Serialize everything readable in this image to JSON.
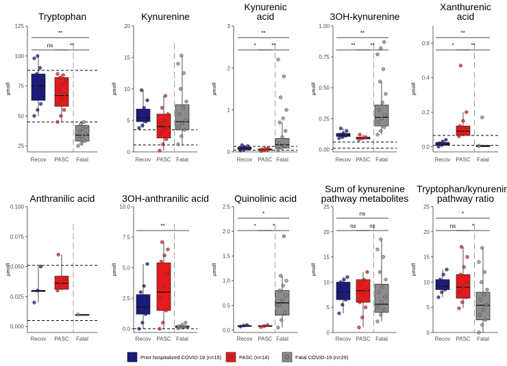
{
  "chart_data": {
    "type": "box",
    "ylabel": "µmol/l",
    "groups": [
      "Recov",
      "PASC",
      "Fatal"
    ],
    "legend": [
      {
        "label": "Prior hospitalized COVID-19 (n=15)",
        "color": "#1a1a7e"
      },
      {
        "label": "PASC (n=14)",
        "color": "#e41a1c"
      },
      {
        "label": "Fatal COVID-19 (n=29)",
        "color": "#8c8c8c"
      }
    ],
    "panels": [
      {
        "title": [
          "Tryptophan"
        ],
        "ylim": [
          20,
          125
        ],
        "ticks": [
          25,
          50,
          75,
          100,
          125
        ],
        "tick_labels": [
          "25",
          "50",
          "75",
          "100",
          "125"
        ],
        "ref_lines": [
          88,
          45
        ],
        "boxes": [
          {
            "q1": 63,
            "med": 75,
            "q3": 85,
            "lo": 50,
            "hi": 100,
            "pts": [
              50,
              55,
              60,
              65,
              70,
              72,
              75,
              78,
              82,
              85,
              90,
              98,
              100
            ]
          },
          {
            "q1": 58,
            "med": 67,
            "q3": 82,
            "lo": 45,
            "hi": 85,
            "pts": [
              45,
              50,
              55,
              60,
              64,
              68,
              72,
              76,
              80,
              82,
              84,
              85
            ]
          },
          {
            "q1": 29,
            "med": 34,
            "q3": 42,
            "lo": 25,
            "hi": 45,
            "pts": [
              25,
              27,
              29,
              31,
              33,
              35,
              37,
              39,
              41,
              43,
              45
            ]
          }
        ],
        "brackets": [
          {
            "from": 0,
            "to": 1,
            "level": 0,
            "label": "ns"
          },
          {
            "from": 1,
            "to": 2,
            "level": 0,
            "label": "**"
          },
          {
            "from": 0,
            "to": 2,
            "level": 1,
            "label": "**"
          }
        ]
      },
      {
        "title": [
          "Kynurenine"
        ],
        "ylim": [
          0,
          20
        ],
        "ticks": [
          0,
          5,
          10,
          15,
          20
        ],
        "tick_labels": [
          "0",
          "5",
          "10",
          "15",
          "20"
        ],
        "ref_lines": [
          3.5,
          1.1
        ],
        "boxes": [
          {
            "q1": 4.8,
            "med": 5.4,
            "q3": 6.8,
            "lo": 3.8,
            "hi": 9.8,
            "pts": [
              3.8,
              4.2,
              4.8,
              5.2,
              5.5,
              6.0,
              6.5,
              7.0,
              8.2,
              9.8
            ]
          },
          {
            "q1": 2.2,
            "med": 4.0,
            "q3": 6.0,
            "lo": 0.2,
            "hi": 8.9,
            "pts": [
              0.2,
              1.2,
              2.0,
              3.0,
              3.5,
              4.0,
              4.5,
              5.0,
              6.0,
              7.0,
              8.9
            ]
          },
          {
            "q1": 3.5,
            "med": 4.8,
            "q3": 7.5,
            "lo": 1.2,
            "hi": 15.3,
            "pts": [
              1.2,
              2.5,
              3.5,
              4.0,
              4.5,
              5.0,
              6.0,
              7.0,
              8.0,
              10.0,
              12.5,
              14.0,
              15.3
            ]
          }
        ],
        "brackets": []
      },
      {
        "title": [
          "Kynurenic",
          "acid"
        ],
        "ylim": [
          0,
          3
        ],
        "ticks": [
          0,
          1,
          2,
          3
        ],
        "tick_labels": [
          "0",
          "1",
          "2",
          "3"
        ],
        "ref_lines": [
          0.13,
          0.04
        ],
        "boxes": [
          {
            "q1": 0.06,
            "med": 0.08,
            "q3": 0.11,
            "lo": 0.03,
            "hi": 0.16,
            "pts": [
              0.03,
              0.05,
              0.07,
              0.09,
              0.11,
              0.14,
              0.16
            ]
          },
          {
            "q1": 0.04,
            "med": 0.05,
            "q3": 0.07,
            "lo": 0.02,
            "hi": 0.09,
            "pts": [
              0.02,
              0.04,
              0.05,
              0.06,
              0.08,
              0.09
            ]
          },
          {
            "q1": 0.09,
            "med": 0.17,
            "q3": 0.32,
            "lo": 0.03,
            "hi": 0.7,
            "pts": [
              0.05,
              0.1,
              0.15,
              0.2,
              0.35,
              0.5,
              0.7,
              0.8,
              1.0,
              1.3,
              1.8,
              2.2
            ]
          }
        ],
        "brackets": [
          {
            "from": 0,
            "to": 1,
            "level": 0,
            "label": "*"
          },
          {
            "from": 1,
            "to": 2,
            "level": 0,
            "label": "**"
          },
          {
            "from": 0,
            "to": 2,
            "level": 1,
            "label": "**"
          }
        ]
      },
      {
        "title": [
          "3OH-kynurenine"
        ],
        "ylim": [
          -0.02,
          1.0
        ],
        "ticks": [
          0,
          0.25,
          0.5,
          0.75,
          1.0
        ],
        "tick_labels": [
          "0.00",
          "0.25",
          "0.50",
          "0.75",
          "1.00"
        ],
        "ref_lines": [
          0.06,
          0.01
        ],
        "boxes": [
          {
            "q1": 0.105,
            "med": 0.115,
            "q3": 0.13,
            "lo": 0.09,
            "hi": 0.17,
            "pts": [
              0.09,
              0.1,
              0.11,
              0.12,
              0.13,
              0.15,
              0.17
            ]
          },
          {
            "q1": 0.085,
            "med": 0.09,
            "q3": 0.1,
            "lo": 0.08,
            "hi": 0.12,
            "pts": [
              0.08,
              0.09,
              0.1,
              0.12
            ]
          },
          {
            "q1": 0.19,
            "med": 0.26,
            "q3": 0.36,
            "lo": 0.12,
            "hi": 0.55,
            "pts": [
              0.12,
              0.15,
              0.18,
              0.22,
              0.25,
              0.28,
              0.32,
              0.38,
              0.45,
              0.55,
              0.65,
              0.77,
              0.82,
              0.87
            ]
          }
        ],
        "brackets": [
          {
            "from": 0,
            "to": 1,
            "level": 0,
            "label": "**"
          },
          {
            "from": 1,
            "to": 2,
            "level": 0,
            "label": "**"
          },
          {
            "from": 0,
            "to": 2,
            "level": 1,
            "label": "**"
          }
        ]
      },
      {
        "title": [
          "Xanthurenic",
          "acid"
        ],
        "ylim": [
          -0.03,
          0.7
        ],
        "ticks": [
          0,
          0.2,
          0.4,
          0.6
        ],
        "tick_labels": [
          "0.0",
          "0.2",
          "0.4",
          "0.6"
        ],
        "ref_lines": [
          0.065,
          0.008
        ],
        "boxes": [
          {
            "q1": 0.008,
            "med": 0.015,
            "q3": 0.025,
            "lo": 0.0,
            "hi": 0.04,
            "pts": [
              0.0,
              0.01,
              0.015,
              0.02,
              0.03,
              0.04
            ]
          },
          {
            "q1": 0.065,
            "med": 0.09,
            "q3": 0.12,
            "lo": 0.06,
            "hi": 0.2,
            "pts": [
              0.06,
              0.08,
              0.1,
              0.12,
              0.15,
              0.2,
              0.47
            ]
          },
          {
            "q1": 0.0,
            "med": 0.004,
            "q3": 0.008,
            "lo": 0.0,
            "hi": 0.01,
            "pts": [
              0.005,
              0.17
            ]
          }
        ],
        "brackets": [
          {
            "from": 0,
            "to": 1,
            "level": 0,
            "label": "*"
          },
          {
            "from": 1,
            "to": 2,
            "level": 0,
            "label": "**"
          },
          {
            "from": 0,
            "to": 2,
            "level": 1,
            "label": "**"
          }
        ]
      },
      {
        "title": [
          "Anthranilic acid"
        ],
        "ylim": [
          -0.005,
          0.1
        ],
        "ticks": [
          0,
          0.025,
          0.05,
          0.075,
          0.1
        ],
        "tick_labels": [
          "0.000",
          "0.025",
          "0.050",
          "0.075",
          "0.100"
        ],
        "ref_lines": [
          0.051,
          0.005
        ],
        "boxes": [
          {
            "q1": 0.03,
            "med": 0.03,
            "q3": 0.03,
            "lo": 0.02,
            "hi": 0.05,
            "pts": [
              0.02,
              0.03,
              0.05
            ]
          },
          {
            "q1": 0.031,
            "med": 0.036,
            "q3": 0.042,
            "lo": 0.03,
            "hi": 0.06,
            "pts": [
              0.03,
              0.035,
              0.04,
              0.06
            ]
          },
          {
            "q1": 0.01,
            "med": 0.01,
            "q3": 0.01,
            "lo": 0.01,
            "hi": 0.01,
            "pts": [
              0.01
            ]
          }
        ],
        "brackets": []
      },
      {
        "title": [
          "3OH-anthranilic acid"
        ],
        "ylim": [
          -0.3,
          10
        ],
        "ticks": [
          0,
          2.5,
          5,
          7.5,
          10
        ],
        "tick_labels": [
          "0.0",
          "2.5",
          "5.0",
          "7.5",
          "10.0"
        ],
        "ref_lines": [
          0.0
        ],
        "boxes": [
          {
            "q1": 1.2,
            "med": 1.8,
            "q3": 2.8,
            "lo": 0.0,
            "hi": 5.3,
            "pts": [
              0.0,
              0.5,
              1.2,
              1.5,
              2.0,
              2.5,
              3.0,
              3.5,
              5.3
            ]
          },
          {
            "q1": 1.5,
            "med": 3.0,
            "q3": 5.4,
            "lo": 0.0,
            "hi": 7.1,
            "pts": [
              0.0,
              0.5,
              1.5,
              2.5,
              3.5,
              4.5,
              5.5,
              6.0,
              6.5,
              7.1
            ]
          },
          {
            "q1": 0.1,
            "med": 0.15,
            "q3": 0.25,
            "lo": 0.0,
            "hi": 0.5,
            "pts": [
              0.05,
              0.1,
              0.15,
              0.2,
              0.3,
              0.5
            ]
          }
        ],
        "brackets": [
          {
            "from": 0,
            "to": 2,
            "level": 0,
            "label": "**"
          }
        ]
      },
      {
        "title": [
          "Quinolinic acid"
        ],
        "ylim": [
          -0.05,
          2.5
        ],
        "ticks": [
          0,
          0.5,
          1,
          1.5,
          2,
          2.5
        ],
        "tick_labels": [
          "0.0",
          "0.5",
          "1.0",
          "1.5",
          "2.0",
          "2.5"
        ],
        "ref_lines": [],
        "boxes": [
          {
            "q1": 0.08,
            "med": 0.085,
            "q3": 0.09,
            "lo": 0.07,
            "hi": 0.1,
            "pts": [
              0.07,
              0.09,
              0.1
            ]
          },
          {
            "q1": 0.07,
            "med": 0.08,
            "q3": 0.09,
            "lo": 0.06,
            "hi": 0.1,
            "pts": [
              0.06,
              0.08,
              0.1
            ]
          },
          {
            "q1": 0.3,
            "med": 0.55,
            "q3": 0.8,
            "lo": 0.05,
            "hi": 1.1,
            "pts": [
              0.05,
              0.2,
              0.35,
              0.5,
              0.6,
              0.7,
              0.8,
              0.9,
              1.0,
              1.1,
              1.9
            ]
          }
        ],
        "brackets": [
          {
            "from": 0,
            "to": 1,
            "level": 0,
            "label": "*"
          },
          {
            "from": 1,
            "to": 2,
            "level": 0,
            "label": "*"
          },
          {
            "from": 0,
            "to": 2,
            "level": 1,
            "label": "*"
          }
        ]
      },
      {
        "title": [
          "Sum of kynurenine",
          "pathway metabolites"
        ],
        "ylim": [
          0,
          25
        ],
        "ticks": [
          0,
          5,
          10,
          15,
          20,
          25
        ],
        "tick_labels": [
          "0",
          "5",
          "10",
          "15",
          "20",
          "25"
        ],
        "ref_lines": [],
        "boxes": [
          {
            "q1": 6.5,
            "med": 8.0,
            "q3": 10.0,
            "lo": 3.8,
            "hi": 11.0,
            "pts": [
              3.8,
              5.5,
              6.5,
              7.5,
              8.2,
              9.0,
              10.0,
              10.5,
              11.0
            ]
          },
          {
            "q1": 6.0,
            "med": 8.3,
            "q3": 10.5,
            "lo": 1.0,
            "hi": 12.0,
            "pts": [
              1.0,
              3.0,
              5.0,
              6.0,
              7.5,
              8.5,
              9.5,
              10.5,
              12.0
            ]
          },
          {
            "q1": 4.0,
            "med": 5.6,
            "q3": 9.6,
            "lo": 2.2,
            "hi": 18.5,
            "pts": [
              2.2,
              3.5,
              4.5,
              5.0,
              6.0,
              7.0,
              8.0,
              9.0,
              10.5,
              12.0,
              15.0,
              16.5,
              18.5
            ]
          }
        ],
        "brackets": [
          {
            "from": 0,
            "to": 1,
            "level": 0,
            "label": "ns"
          },
          {
            "from": 1,
            "to": 2,
            "level": 0,
            "label": "ns"
          },
          {
            "from": 0,
            "to": 2,
            "level": 1,
            "label": "ns"
          }
        ]
      },
      {
        "title": [
          "Tryptophan/kynurenine",
          "pathway ratio"
        ],
        "ylim": [
          0,
          25
        ],
        "ticks": [
          0,
          5,
          10,
          15,
          20,
          25
        ],
        "tick_labels": [
          "0",
          "5",
          "10",
          "15",
          "20",
          "25"
        ],
        "ref_lines": [],
        "boxes": [
          {
            "q1": 8.5,
            "med": 9.2,
            "q3": 10.5,
            "lo": 7.0,
            "hi": 12.5,
            "pts": [
              7.0,
              8.0,
              8.5,
              9.0,
              9.5,
              10.0,
              10.5,
              11.5,
              12.5
            ]
          },
          {
            "q1": 6.8,
            "med": 9.0,
            "q3": 11.5,
            "lo": 4.8,
            "hi": 17.0,
            "pts": [
              4.8,
              6.0,
              7.0,
              8.0,
              9.0,
              10.0,
              11.5,
              13.0,
              15.0,
              17.0
            ]
          },
          {
            "q1": 2.5,
            "med": 5.4,
            "q3": 8.0,
            "lo": 0.0,
            "hi": 16.8,
            "pts": [
              0.0,
              1.5,
              2.5,
              3.5,
              4.5,
              5.5,
              6.5,
              7.5,
              8.5,
              10.0,
              12.0,
              14.0,
              16.8
            ]
          }
        ],
        "brackets": [
          {
            "from": 0,
            "to": 1,
            "level": 0,
            "label": "ns"
          },
          {
            "from": 1,
            "to": 2,
            "level": 0,
            "label": "*"
          },
          {
            "from": 0,
            "to": 2,
            "level": 1,
            "label": "*"
          }
        ]
      }
    ]
  }
}
